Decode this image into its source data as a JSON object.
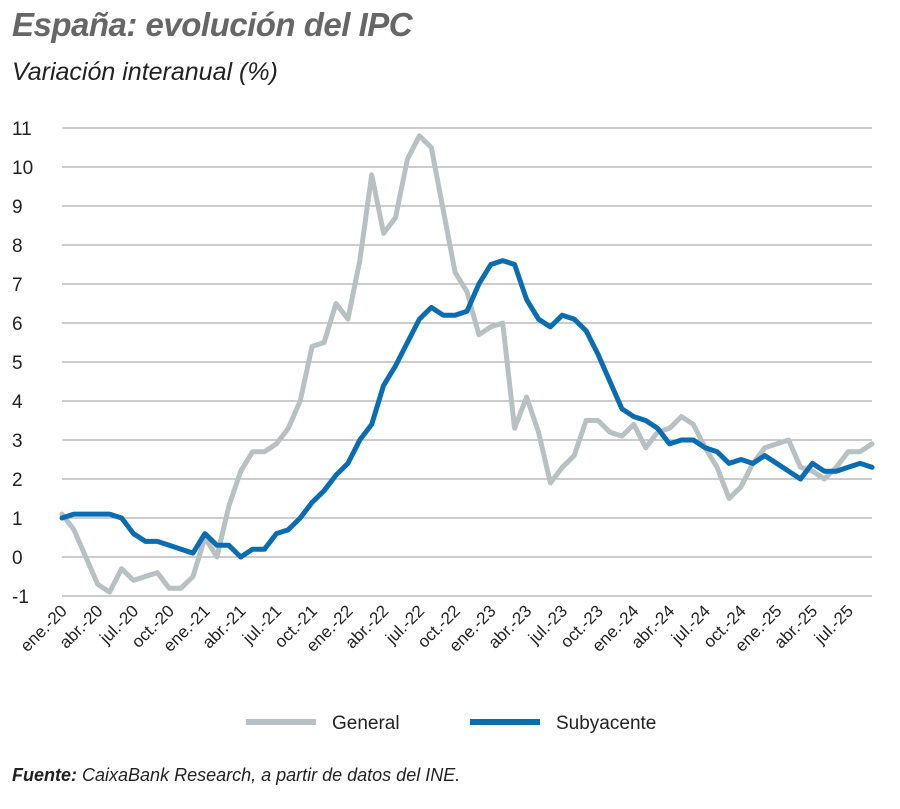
{
  "title": "España: evolución del IPC",
  "subtitle": "Variación interanual (%)",
  "source": {
    "label": "Fuente:",
    "text": "CaixaBank Research, a partir de datos del INE."
  },
  "colors": {
    "general": "#b7c0c3",
    "subyacente": "#0a6db1",
    "grid": "#9a9a9a"
  },
  "chart_data": {
    "type": "line",
    "title": "España: evolución del IPC",
    "ylabel": "Variación interanual (%)",
    "ylim": [
      -1,
      11
    ],
    "yticks": [
      -1,
      0,
      1,
      2,
      3,
      4,
      5,
      6,
      7,
      8,
      9,
      10,
      11
    ],
    "grid": true,
    "legend_position": "bottom",
    "x": [
      "ene.-20",
      "feb.-20",
      "mar.-20",
      "abr.-20",
      "may.-20",
      "jun.-20",
      "jul.-20",
      "ago.-20",
      "sep.-20",
      "oct.-20",
      "nov.-20",
      "dic.-20",
      "ene.-21",
      "feb.-21",
      "mar.-21",
      "abr.-21",
      "may.-21",
      "jun.-21",
      "jul.-21",
      "ago.-21",
      "sep.-21",
      "oct.-21",
      "nov.-21",
      "dic.-21",
      "ene.-22",
      "feb.-22",
      "mar.-22",
      "abr.-22",
      "may.-22",
      "jun.-22",
      "jul.-22",
      "ago.-22",
      "sep.-22",
      "oct.-22",
      "nov.-22",
      "dic.-22",
      "ene.-23",
      "feb.-23",
      "mar.-23",
      "abr.-23",
      "may.-23",
      "jun.-23",
      "jul.-23",
      "ago.-23",
      "sep.-23",
      "oct.-23",
      "nov.-23",
      "dic.-23",
      "ene.-24",
      "feb.-24",
      "mar.-24",
      "abr.-24",
      "may.-24",
      "jun.-24",
      "jul.-24",
      "ago.-24",
      "sep.-24",
      "oct.-24",
      "nov.-24",
      "dic.-24",
      "ene.-25",
      "feb.-25",
      "mar.-25",
      "abr.-25",
      "may.-25",
      "jun.-25",
      "jul.-25",
      "ago.-25",
      "sep.-25"
    ],
    "tick_labels": [
      "ene.-20",
      "abr.-20",
      "jul.-20",
      "oct.-20",
      "ene.-21",
      "abr.-21",
      "jul.-21",
      "oct.-21",
      "ene.-22",
      "abr.-22",
      "jul.-22",
      "oct.-22",
      "ene.-23",
      "abr.-23",
      "jul.-23",
      "oct.-23",
      "ene.-24",
      "abr.-24",
      "jul.-24",
      "oct.-24",
      "ene.-25",
      "abr.-25",
      "jul.-25"
    ],
    "series": [
      {
        "name": "General",
        "values": [
          1.1,
          0.7,
          0.0,
          -0.7,
          -0.9,
          -0.3,
          -0.6,
          -0.5,
          -0.4,
          -0.8,
          -0.8,
          -0.5,
          0.5,
          0.0,
          1.3,
          2.2,
          2.7,
          2.7,
          2.9,
          3.3,
          4.0,
          5.4,
          5.5,
          6.5,
          6.1,
          7.6,
          9.8,
          8.3,
          8.7,
          10.2,
          10.8,
          10.5,
          8.9,
          7.3,
          6.8,
          5.7,
          5.9,
          6.0,
          3.3,
          4.1,
          3.2,
          1.9,
          2.3,
          2.6,
          3.5,
          3.5,
          3.2,
          3.1,
          3.4,
          2.8,
          3.2,
          3.3,
          3.6,
          3.4,
          2.8,
          2.3,
          1.5,
          1.8,
          2.4,
          2.8,
          2.9,
          3.0,
          2.3,
          2.2,
          2.0,
          2.3,
          2.7,
          2.7,
          2.9
        ]
      },
      {
        "name": "Subyacente",
        "values": [
          1.0,
          1.1,
          1.1,
          1.1,
          1.1,
          1.0,
          0.6,
          0.4,
          0.4,
          0.3,
          0.2,
          0.1,
          0.6,
          0.3,
          0.3,
          0.0,
          0.2,
          0.2,
          0.6,
          0.7,
          1.0,
          1.4,
          1.7,
          2.1,
          2.4,
          3.0,
          3.4,
          4.4,
          4.9,
          5.5,
          6.1,
          6.4,
          6.2,
          6.2,
          6.3,
          7.0,
          7.5,
          7.6,
          7.5,
          6.6,
          6.1,
          5.9,
          6.2,
          6.1,
          5.8,
          5.2,
          4.5,
          3.8,
          3.6,
          3.5,
          3.3,
          2.9,
          3.0,
          3.0,
          2.8,
          2.7,
          2.4,
          2.5,
          2.4,
          2.6,
          2.4,
          2.2,
          2.0,
          2.4,
          2.2,
          2.2,
          2.3,
          2.4,
          2.3
        ]
      }
    ]
  }
}
